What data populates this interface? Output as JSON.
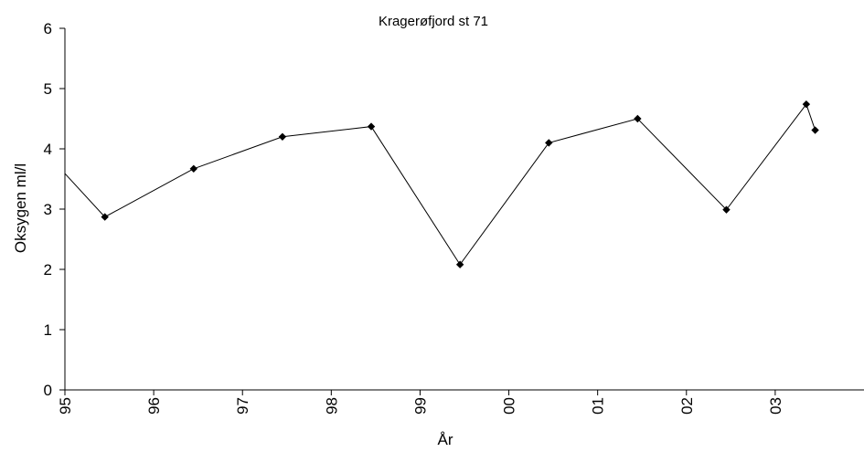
{
  "chart_data": {
    "type": "line",
    "title": "Kragerøfjord st 71",
    "xlabel": "År",
    "ylabel": "Oksygen ml/l",
    "xlim": [
      1995.0,
      2004.0
    ],
    "ylim": [
      0,
      6
    ],
    "x_ticks": [
      {
        "value": 1995,
        "label": "95"
      },
      {
        "value": 1996,
        "label": "96"
      },
      {
        "value": 1997,
        "label": "97"
      },
      {
        "value": 1998,
        "label": "98"
      },
      {
        "value": 1999,
        "label": "99"
      },
      {
        "value": 2000,
        "label": "00"
      },
      {
        "value": 2001,
        "label": "01"
      },
      {
        "value": 2002,
        "label": "02"
      },
      {
        "value": 2003,
        "label": "03"
      }
    ],
    "y_ticks": [
      0,
      1,
      2,
      3,
      4,
      5,
      6
    ],
    "grid": false,
    "series": [
      {
        "color": "#000000",
        "marker": "diamond",
        "points": [
          {
            "x": 1995.0,
            "y": 3.59,
            "marker": false
          },
          {
            "x": 1995.45,
            "y": 2.87
          },
          {
            "x": 1996.45,
            "y": 3.67
          },
          {
            "x": 1997.45,
            "y": 4.2
          },
          {
            "x": 1998.45,
            "y": 4.37
          },
          {
            "x": 1999.45,
            "y": 2.08
          },
          {
            "x": 2000.45,
            "y": 4.1
          },
          {
            "x": 2001.45,
            "y": 4.5
          },
          {
            "x": 2002.45,
            "y": 2.99
          },
          {
            "x": 2003.35,
            "y": 4.74
          },
          {
            "x": 2003.45,
            "y": 4.31
          }
        ]
      }
    ]
  }
}
